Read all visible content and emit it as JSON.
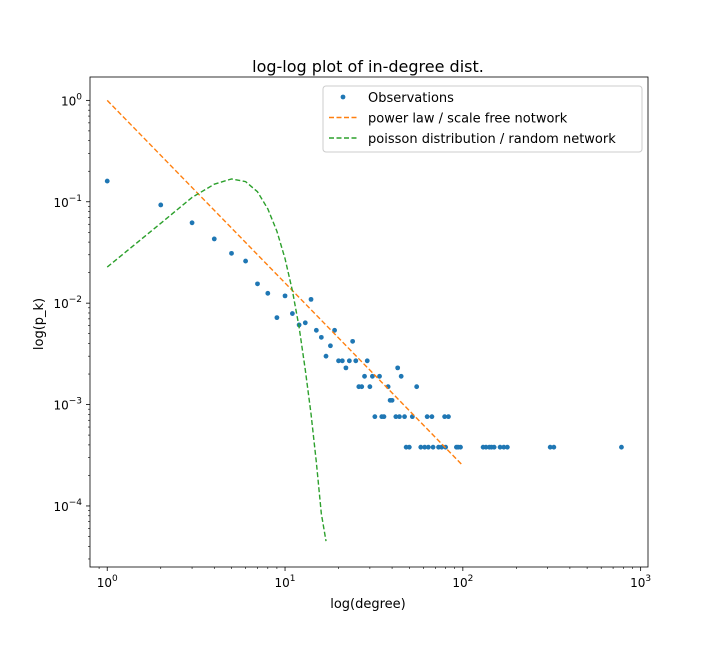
{
  "chart_data": {
    "type": "scatter",
    "title": "log-log plot of in-degree dist.",
    "xlabel": "log(degree)",
    "ylabel": "log(p_k)",
    "xscale": "log",
    "yscale": "log",
    "xlim": [
      0.8,
      1100
    ],
    "ylim": [
      2.5e-05,
      1.7
    ],
    "x_ticks": [
      {
        "value": 1,
        "base": "10",
        "exp": "0"
      },
      {
        "value": 10,
        "base": "10",
        "exp": "1"
      },
      {
        "value": 100,
        "base": "10",
        "exp": "2"
      },
      {
        "value": 1000,
        "base": "10",
        "exp": "3"
      }
    ],
    "y_ticks": [
      {
        "value": 0.0001,
        "base": "10",
        "exp": "−4"
      },
      {
        "value": 0.001,
        "base": "10",
        "exp": "−3"
      },
      {
        "value": 0.01,
        "base": "10",
        "exp": "−2"
      },
      {
        "value": 0.1,
        "base": "10",
        "exp": "−1"
      },
      {
        "value": 1,
        "base": "10",
        "exp": "0"
      }
    ],
    "legend_position": "top-right",
    "grid": false,
    "series": [
      {
        "name": "Observations",
        "kind": "scatter",
        "color": "#1f77b4",
        "points": [
          [
            1,
            0.16
          ],
          [
            2,
            0.093
          ],
          [
            3,
            0.062
          ],
          [
            4,
            0.043
          ],
          [
            5,
            0.031
          ],
          [
            6,
            0.026
          ],
          [
            7,
            0.0155
          ],
          [
            8,
            0.0125
          ],
          [
            9,
            0.0072
          ],
          [
            10,
            0.0118
          ],
          [
            11,
            0.0079
          ],
          [
            12,
            0.0061
          ],
          [
            13,
            0.0064
          ],
          [
            14,
            0.0109
          ],
          [
            15,
            0.0054
          ],
          [
            16,
            0.0046
          ],
          [
            17,
            0.003
          ],
          [
            18,
            0.0038
          ],
          [
            19,
            0.0054
          ],
          [
            20,
            0.0027
          ],
          [
            21,
            0.0027
          ],
          [
            22,
            0.0023
          ],
          [
            23,
            0.0027
          ],
          [
            24,
            0.0042
          ],
          [
            25,
            0.0027
          ],
          [
            26,
            0.0015
          ],
          [
            27,
            0.0015
          ],
          [
            28,
            0.0019
          ],
          [
            29,
            0.0027
          ],
          [
            30,
            0.0015
          ],
          [
            31,
            0.0019
          ],
          [
            32,
            0.00076
          ],
          [
            34,
            0.0019
          ],
          [
            35,
            0.00076
          ],
          [
            36,
            0.00076
          ],
          [
            38,
            0.0015
          ],
          [
            39,
            0.0011
          ],
          [
            40,
            0.0011
          ],
          [
            42,
            0.00076
          ],
          [
            43,
            0.0023
          ],
          [
            44,
            0.00076
          ],
          [
            45,
            0.0019
          ],
          [
            47,
            0.00076
          ],
          [
            48,
            0.00038
          ],
          [
            50,
            0.00038
          ],
          [
            52,
            0.00076
          ],
          [
            55,
            0.0015
          ],
          [
            58,
            0.00038
          ],
          [
            61,
            0.00038
          ],
          [
            63,
            0.00076
          ],
          [
            64,
            0.00038
          ],
          [
            67,
            0.00076
          ],
          [
            68,
            0.00038
          ],
          [
            73,
            0.00038
          ],
          [
            76,
            0.00038
          ],
          [
            79,
            0.00076
          ],
          [
            80,
            0.00038
          ],
          [
            83,
            0.00076
          ],
          [
            92,
            0.00038
          ],
          [
            94,
            0.00038
          ],
          [
            97,
            0.00038
          ],
          [
            130,
            0.00038
          ],
          [
            135,
            0.00038
          ],
          [
            141,
            0.00038
          ],
          [
            145,
            0.00038
          ],
          [
            150,
            0.00038
          ],
          [
            162,
            0.00038
          ],
          [
            170,
            0.00038
          ],
          [
            178,
            0.00038
          ],
          [
            310,
            0.00038
          ],
          [
            325,
            0.00038
          ],
          [
            780,
            0.00038
          ]
        ]
      },
      {
        "name": "power law / scale free notwork",
        "kind": "dashed-line",
        "color": "#ff7f0e",
        "points": [
          [
            1,
            1.0
          ],
          [
            100,
            0.00025
          ]
        ]
      },
      {
        "name": "poisson distribution / random network",
        "kind": "dashed-line",
        "color": "#2ca02c",
        "points": [
          [
            1,
            0.0227
          ],
          [
            2,
            0.0613
          ],
          [
            3,
            0.1104
          ],
          [
            4,
            0.149
          ],
          [
            5,
            0.168
          ],
          [
            6,
            0.158
          ],
          [
            7,
            0.1255
          ],
          [
            8,
            0.0851
          ],
          [
            9,
            0.0512
          ],
          [
            10,
            0.0275
          ],
          [
            11,
            0.0133
          ],
          [
            12,
            0.0058
          ],
          [
            13,
            0.0022
          ],
          [
            14,
            0.00081
          ],
          [
            15,
            0.00027
          ],
          [
            16,
            8.4e-05
          ],
          [
            17,
            4.5e-05
          ]
        ]
      }
    ]
  }
}
